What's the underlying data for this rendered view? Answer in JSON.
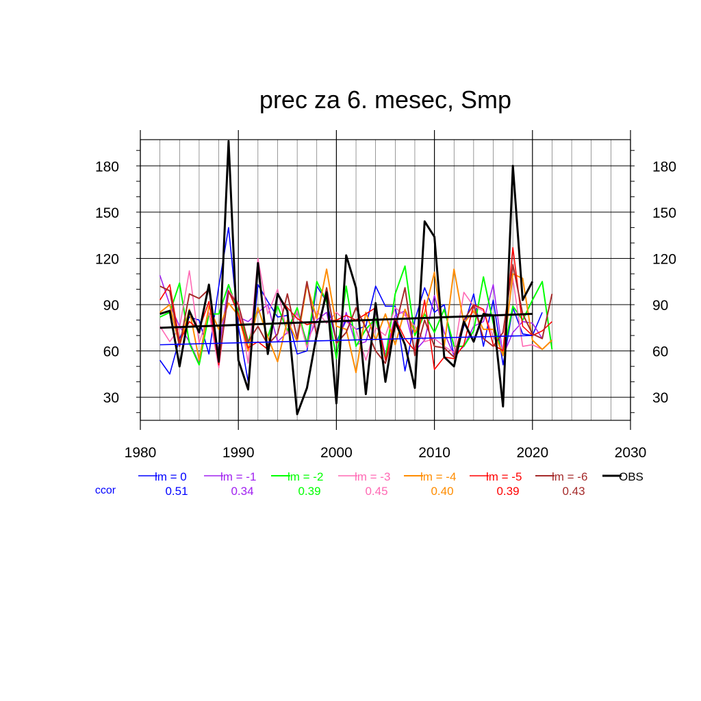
{
  "chart_data": {
    "type": "line",
    "title": "prec za 6. mesec, Smp",
    "xlim": [
      1980,
      2030
    ],
    "ylim": [
      15,
      197
    ],
    "x_ticks": [
      1980,
      1990,
      2000,
      2010,
      2020,
      2030
    ],
    "y_ticks": [
      30,
      60,
      90,
      120,
      150,
      180
    ],
    "x_tick_labels": [
      "1980",
      "1990",
      "2000",
      "2010",
      "2020",
      "2030"
    ],
    "y_tick_labels": [
      "30",
      "60",
      "90",
      "120",
      "150",
      "180"
    ],
    "grid": true,
    "ccor_label": "ccor",
    "series": [
      {
        "name": "lm = 0",
        "ccor": "0.51",
        "color": "#0000ff",
        "width": 1.6,
        "x": [
          1982,
          1983,
          1984,
          1985,
          1986,
          1987,
          1988,
          1989,
          1990,
          1991,
          1992,
          1993,
          1994,
          1995,
          1996,
          1997,
          1998,
          1999,
          2000,
          2001,
          2002,
          2003,
          2004,
          2005,
          2006,
          2007,
          2008,
          2009,
          2010,
          2011,
          2012,
          2013,
          2014,
          2015,
          2016,
          2017,
          2018,
          2019,
          2020,
          2021
        ],
        "y": [
          54,
          45,
          68,
          82,
          80,
          58,
          102,
          140,
          76,
          40,
          103,
          92,
          82,
          83,
          58,
          60,
          102,
          92,
          66,
          80,
          74,
          76,
          102,
          89,
          89,
          47,
          80,
          101,
          85,
          90,
          56,
          76,
          97,
          63,
          93,
          51,
          88,
          71,
          70,
          85
        ]
      },
      {
        "name": "lm = -1",
        "ccor": "0.34",
        "color": "#a020f0",
        "width": 1.6,
        "x": [
          1982,
          1983,
          1984,
          1985,
          1986,
          1987,
          1988,
          1989,
          1990,
          1991,
          1992,
          1993,
          1994,
          1995,
          1996,
          1997,
          1998,
          1999,
          2000,
          2001,
          2002,
          2003,
          2004,
          2005,
          2006,
          2007,
          2008,
          2009,
          2010,
          2011,
          2012,
          2013,
          2014,
          2015,
          2016,
          2017,
          2018,
          2019,
          2020,
          2021
        ],
        "y": [
          109,
          90,
          76,
          66,
          52,
          84,
          60,
          103,
          82,
          79,
          85,
          90,
          66,
          72,
          85,
          66,
          80,
          85,
          57,
          85,
          64,
          66,
          86,
          57,
          83,
          86,
          60,
          67,
          96,
          72,
          57,
          63,
          76,
          79,
          103,
          57,
          72,
          79,
          78,
          68
        ]
      },
      {
        "name": "lm = -2",
        "ccor": "0.39",
        "color": "#00ff00",
        "width": 2.0,
        "x": [
          1982,
          1983,
          1984,
          1985,
          1986,
          1987,
          1988,
          1989,
          1990,
          1991,
          1992,
          1993,
          1994,
          1995,
          1996,
          1997,
          1998,
          1999,
          2000,
          2001,
          2002,
          2003,
          2004,
          2005,
          2006,
          2007,
          2008,
          2009,
          2010,
          2011,
          2012,
          2013,
          2014,
          2015,
          2016,
          2017,
          2018,
          2019,
          2020,
          2021,
          2022
        ],
        "y": [
          82,
          85,
          104,
          65,
          51,
          84,
          84,
          103,
          85,
          65,
          88,
          69,
          89,
          73,
          88,
          64,
          105,
          92,
          55,
          102,
          63,
          74,
          81,
          55,
          97,
          115,
          70,
          84,
          72,
          87,
          63,
          63,
          73,
          108,
          78,
          57,
          89,
          80,
          93,
          105,
          61
        ]
      },
      {
        "name": "lm = -3",
        "ccor": "0.45",
        "color": "#ff69b4",
        "width": 1.6,
        "x": [
          1982,
          1983,
          1984,
          1985,
          1986,
          1987,
          1988,
          1989,
          1990,
          1991,
          1992,
          1993,
          1994,
          1995,
          1996,
          1997,
          1998,
          1999,
          2000,
          2001,
          2002,
          2003,
          2004,
          2005,
          2006,
          2007,
          2008,
          2009,
          2010,
          2011,
          2012,
          2013,
          2014,
          2015,
          2016,
          2017,
          2018,
          2019,
          2020,
          2021,
          2022
        ],
        "y": [
          76,
          66,
          75,
          112,
          65,
          85,
          49,
          99,
          91,
          52,
          120,
          84,
          100,
          71,
          86,
          62,
          86,
          78,
          85,
          79,
          74,
          54,
          75,
          70,
          88,
          83,
          76,
          66,
          68,
          63,
          59,
          98,
          89,
          86,
          69,
          61,
          107,
          63,
          64,
          61,
          67
        ]
      },
      {
        "name": "lm = -4",
        "ccor": "0.40",
        "color": "#ff8c00",
        "width": 2.0,
        "x": [
          1982,
          1983,
          1984,
          1985,
          1986,
          1987,
          1988,
          1989,
          1990,
          1991,
          1992,
          1993,
          1994,
          1995,
          1996,
          1997,
          1998,
          1999,
          2000,
          2001,
          2002,
          2003,
          2004,
          2005,
          2006,
          2007,
          2008,
          2009,
          2010,
          2011,
          2012,
          2013,
          2014,
          2015,
          2016,
          2017,
          2018,
          2019,
          2020,
          2021,
          2022
        ],
        "y": [
          85,
          90,
          63,
          87,
          54,
          89,
          74,
          91,
          83,
          60,
          88,
          69,
          53,
          80,
          66,
          103,
          81,
          113,
          76,
          74,
          46,
          85,
          67,
          84,
          64,
          87,
          72,
          85,
          111,
          63,
          113,
          78,
          86,
          74,
          74,
          57,
          110,
          107,
          67,
          61,
          67
        ]
      },
      {
        "name": "lm = -5",
        "ccor": "0.39",
        "color": "#ff0000",
        "width": 1.6,
        "x": [
          1982,
          1983,
          1984,
          1985,
          1986,
          1987,
          1988,
          1989,
          1990,
          1991,
          1992,
          1993,
          1994,
          1995,
          1996,
          1997,
          1998,
          1999,
          2000,
          2001,
          2002,
          2003,
          2004,
          2005,
          2006,
          2007,
          2008,
          2009,
          2010,
          2011,
          2012,
          2013,
          2014,
          2015,
          2016,
          2017,
          2018,
          2019,
          2020,
          2021,
          2022
        ],
        "y": [
          93,
          103,
          66,
          79,
          74,
          92,
          51,
          99,
          84,
          62,
          66,
          61,
          96,
          88,
          81,
          77,
          79,
          79,
          80,
          83,
          80,
          84,
          88,
          54,
          81,
          68,
          60,
          93,
          48,
          56,
          55,
          64,
          90,
          87,
          64,
          60,
          127,
          76,
          70,
          73,
          79
        ]
      },
      {
        "name": "lm = -6",
        "ccor": "0.43",
        "color": "#a52a2a",
        "width": 2.0,
        "x": [
          1982,
          1983,
          1984,
          1985,
          1986,
          1987,
          1988,
          1989,
          1990,
          1991,
          1992,
          1993,
          1994,
          1995,
          1996,
          1997,
          1998,
          1999,
          2000,
          2001,
          2002,
          2003,
          2004,
          2005,
          2006,
          2007,
          2008,
          2009,
          2010,
          2011,
          2012,
          2013,
          2014,
          2015,
          2016,
          2017,
          2018,
          2019,
          2020,
          2021,
          2022
        ],
        "y": [
          102,
          99,
          63,
          97,
          94,
          100,
          53,
          98,
          90,
          66,
          76,
          64,
          71,
          97,
          68,
          105,
          69,
          101,
          65,
          72,
          88,
          75,
          60,
          52,
          75,
          101,
          57,
          80,
          63,
          62,
          56,
          80,
          90,
          68,
          63,
          72,
          116,
          84,
          71,
          68,
          97
        ]
      },
      {
        "name": "OBS",
        "color": "#000000",
        "width": 3.0,
        "x": [
          1982,
          1983,
          1984,
          1985,
          1986,
          1987,
          1988,
          1989,
          1990,
          1991,
          1992,
          1993,
          1994,
          1995,
          1996,
          1997,
          1998,
          1999,
          2000,
          2001,
          2002,
          2003,
          2004,
          2005,
          2006,
          2007,
          2008,
          2009,
          2010,
          2011,
          2012,
          2013,
          2014,
          2015,
          2016,
          2017,
          2018,
          2019,
          2020
        ],
        "y": [
          84,
          86,
          50,
          86,
          72,
          103,
          53,
          196,
          54,
          35,
          117,
          58,
          97,
          86,
          19,
          36,
          71,
          98,
          26,
          122,
          101,
          32,
          91,
          40,
          79,
          64,
          36,
          144,
          134,
          56,
          50,
          79,
          66,
          84,
          83,
          24,
          180,
          93,
          105
        ]
      }
    ],
    "trendlines": [
      {
        "series": "lm = 0",
        "color": "#0000ff",
        "width": 1.6,
        "x": [
          1982,
          2020
        ],
        "y": [
          64,
          70
        ]
      },
      {
        "series": "OBS",
        "color": "#000000",
        "width": 3.0,
        "x": [
          1982,
          2020
        ],
        "y": [
          75,
          84
        ]
      }
    ]
  }
}
